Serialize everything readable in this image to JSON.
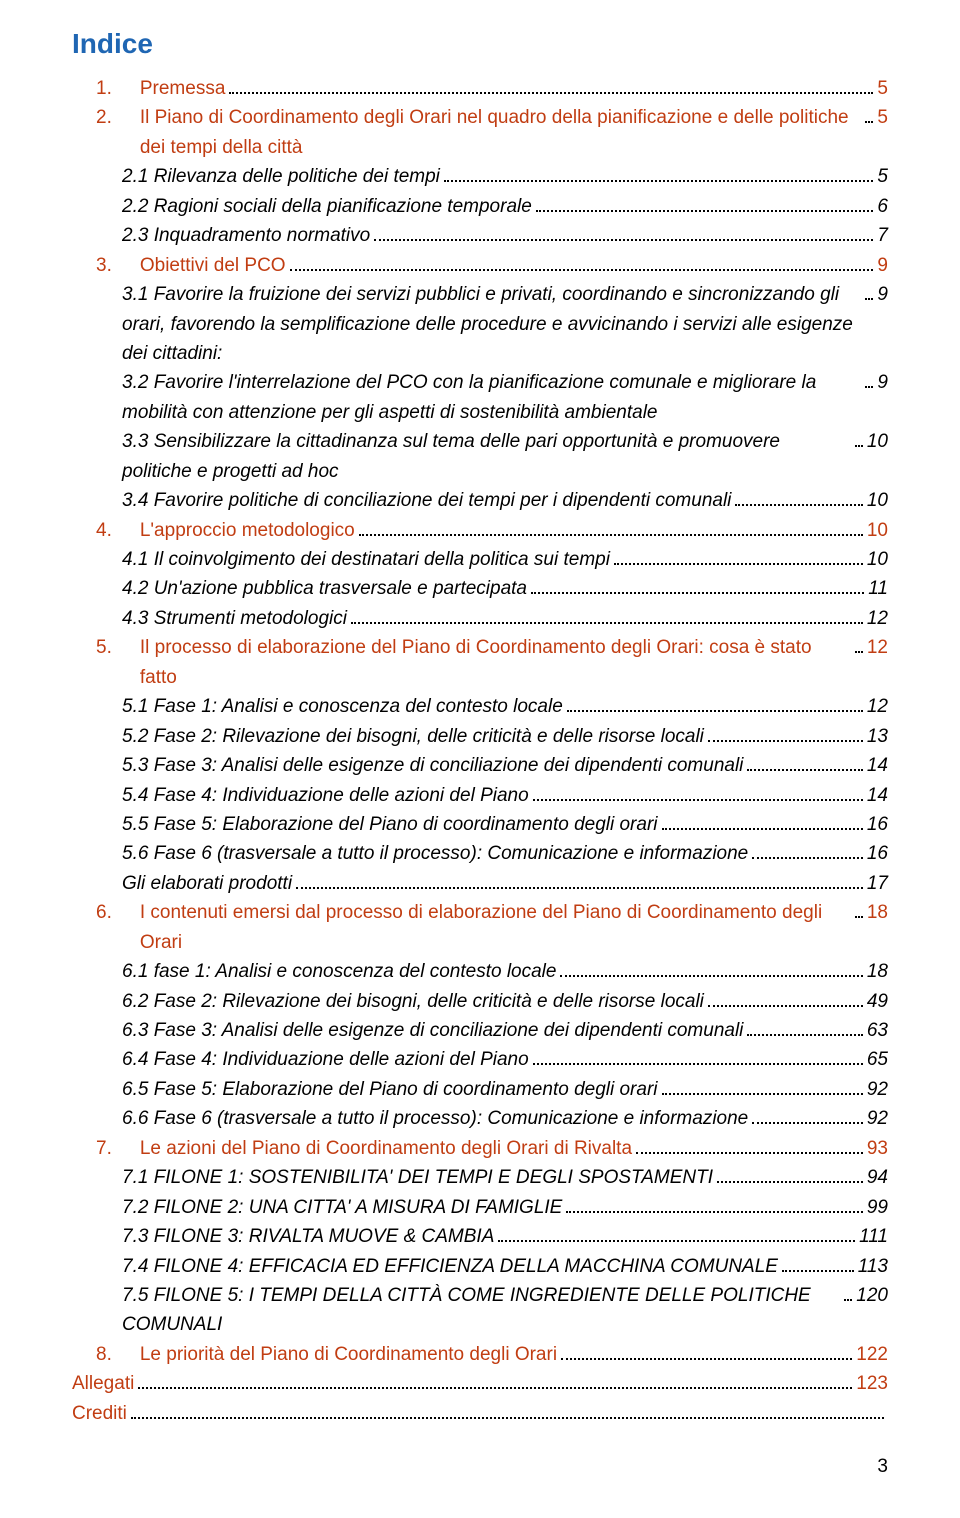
{
  "title": "Indice",
  "title_color": "#1f66b3",
  "heading_color": "#c13d12",
  "body_color": "#000000",
  "page_number": "3",
  "entries": [
    {
      "level": 1,
      "num": "1.",
      "label": "Premessa",
      "page": "5",
      "color": "#c13d12"
    },
    {
      "level": 1,
      "num": "2.",
      "label": "Il Piano di Coordinamento degli Orari nel quadro della pianificazione e delle politiche dei tempi della città",
      "page": "5",
      "color": "#c13d12"
    },
    {
      "level": 2,
      "num": "2.1",
      "label": "Rilevanza delle politiche dei tempi",
      "page": "5"
    },
    {
      "level": 2,
      "num": "2.2",
      "label": "Ragioni sociali della pianificazione temporale",
      "page": "6"
    },
    {
      "level": 2,
      "num": "2.3",
      "label": "Inquadramento normativo",
      "page": "7"
    },
    {
      "level": 1,
      "num": "3.",
      "label": "Obiettivi del PCO",
      "page": "9",
      "color": "#c13d12"
    },
    {
      "level": 2,
      "num": "3.1",
      "label": "Favorire la fruizione dei servizi pubblici e privati, coordinando e sincronizzando gli orari, favorendo la semplificazione delle procedure e avvicinando i servizi alle esigenze dei cittadini:",
      "page": "9"
    },
    {
      "level": 2,
      "num": "3.2",
      "label": "Favorire l'interrelazione del PCO con la pianificazione comunale e migliorare la mobilità con attenzione per gli aspetti di sostenibilità ambientale",
      "page": "9"
    },
    {
      "level": 2,
      "num": "3.3",
      "label": "Sensibilizzare la cittadinanza sul tema delle pari opportunità e promuovere politiche e progetti ad hoc",
      "page": "10"
    },
    {
      "level": 2,
      "num": "3.4",
      "label": "Favorire politiche di conciliazione dei tempi per i dipendenti comunali",
      "page": "10"
    },
    {
      "level": 1,
      "num": "4.",
      "label": "L'approccio metodologico",
      "page": "10",
      "color": "#c13d12"
    },
    {
      "level": 2,
      "num": "4.1",
      "label": "Il coinvolgimento dei destinatari della politica sui tempi",
      "page": "10"
    },
    {
      "level": 2,
      "num": "4.2",
      "label": "Un'azione pubblica trasversale e partecipata",
      "page": "11"
    },
    {
      "level": 2,
      "num": "4.3",
      "label": "Strumenti metodologici",
      "page": "12"
    },
    {
      "level": 1,
      "num": "5.",
      "label": "Il processo di elaborazione del Piano di Coordinamento degli Orari: cosa è stato fatto",
      "page": "12",
      "color": "#c13d12"
    },
    {
      "level": 2,
      "num": "5.1",
      "label": "Fase 1: Analisi e conoscenza del contesto locale",
      "page": "12"
    },
    {
      "level": 2,
      "num": "5.2",
      "label": "Fase 2: Rilevazione dei bisogni, delle criticità e delle risorse locali",
      "page": "13"
    },
    {
      "level": 2,
      "num": "5.3",
      "label": "Fase 3: Analisi delle esigenze di conciliazione dei dipendenti comunali",
      "page": "14"
    },
    {
      "level": 2,
      "num": "5.4",
      "label": "Fase 4: Individuazione delle azioni del Piano",
      "page": "14"
    },
    {
      "level": 2,
      "num": "5.5",
      "label": "Fase 5: Elaborazione del Piano di coordinamento degli orari",
      "page": "16"
    },
    {
      "level": 2,
      "num": "5.6",
      "label": "Fase 6 (trasversale a tutto il processo): Comunicazione e informazione",
      "page": "16"
    },
    {
      "level": 2,
      "num": "",
      "label": "Gli elaborati prodotti",
      "page": "17"
    },
    {
      "level": 1,
      "num": "6.",
      "label": "I contenuti emersi dal processo di elaborazione del Piano di Coordinamento degli Orari",
      "page": "18",
      "color": "#c13d12"
    },
    {
      "level": 2,
      "num": "6.1",
      "label": "fase 1: Analisi e conoscenza del contesto locale",
      "page": "18"
    },
    {
      "level": 2,
      "num": "6.2",
      "label": "Fase 2: Rilevazione dei bisogni, delle criticità e delle risorse locali",
      "page": "49"
    },
    {
      "level": 2,
      "num": "6.3",
      "label": "Fase 3: Analisi delle esigenze di conciliazione dei dipendenti comunali",
      "page": "63"
    },
    {
      "level": 2,
      "num": "6.4",
      "label": "Fase 4: Individuazione delle azioni del Piano",
      "page": "65"
    },
    {
      "level": 2,
      "num": "6.5",
      "label": "Fase 5: Elaborazione del Piano di coordinamento degli orari",
      "page": "92"
    },
    {
      "level": 2,
      "num": "6.6",
      "label": "Fase 6 (trasversale a tutto il processo): Comunicazione e informazione",
      "page": "92"
    },
    {
      "level": 1,
      "num": "7.",
      "label": "Le azioni del Piano di Coordinamento degli Orari di Rivalta",
      "page": "93",
      "color": "#c13d12"
    },
    {
      "level": 2,
      "num": "7.1",
      "label": "FILONE 1: SOSTENIBILITA' DEI TEMPI E DEGLI SPOSTAMENTI",
      "page": "94"
    },
    {
      "level": 2,
      "num": "7.2",
      "label": "FILONE 2: UNA CITTA' A MISURA DI FAMIGLIE",
      "page": "99"
    },
    {
      "level": 2,
      "num": "7.3",
      "label": "FILONE 3: RIVALTA MUOVE & CAMBIA",
      "page": "111"
    },
    {
      "level": 2,
      "num": "7.4",
      "label": "FILONE 4: EFFICACIA ED EFFICIENZA DELLA MACCHINA COMUNALE",
      "page": "113"
    },
    {
      "level": 2,
      "num": "7.5",
      "label": "FILONE 5: I TEMPI DELLA CITTÀ COME INGREDIENTE DELLE POLITICHE COMUNALI",
      "page": "120"
    },
    {
      "level": 1,
      "num": "8.",
      "label": "Le priorità del Piano di Coordinamento degli Orari",
      "page": "122",
      "color": "#c13d12"
    },
    {
      "level": 0,
      "num": "",
      "label": "Allegati",
      "page": "123",
      "color": "#c13d12"
    },
    {
      "level": 0,
      "num": "",
      "label": "Crediti",
      "page": "",
      "color": "#c13d12"
    }
  ]
}
